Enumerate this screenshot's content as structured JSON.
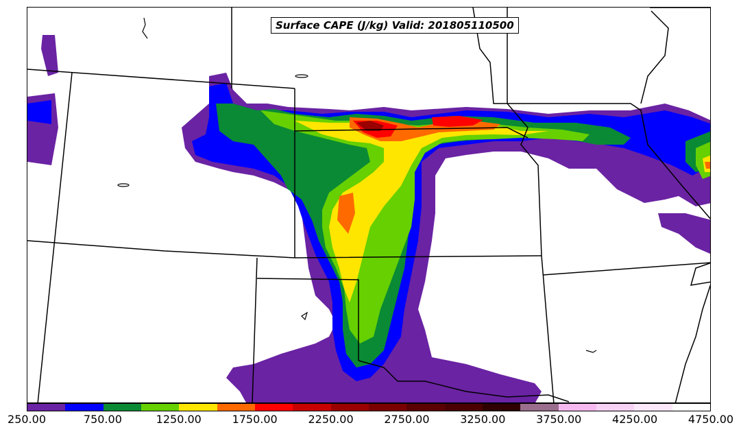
{
  "title": "Surface CAPE (J/kg) Valid: 201805110500",
  "colorbar": {
    "colors": [
      "#6a23a3",
      "#0000ff",
      "#0a8a35",
      "#66d000",
      "#ffe600",
      "#ff6a00",
      "#ff0000",
      "#c80000",
      "#9a0000",
      "#7a0000",
      "#5a0000",
      "#4a0000",
      "#2e0000",
      "#9a6e8c",
      "#f5b9f0",
      "#f7d2f5",
      "#fce8fb",
      "#ffffff"
    ],
    "tick_labels": [
      "250.00",
      "750.00",
      "1250.00",
      "1750.00",
      "2250.00",
      "2750.00",
      "3250.00",
      "3750.00",
      "4250.00",
      "4750.00"
    ]
  }
}
